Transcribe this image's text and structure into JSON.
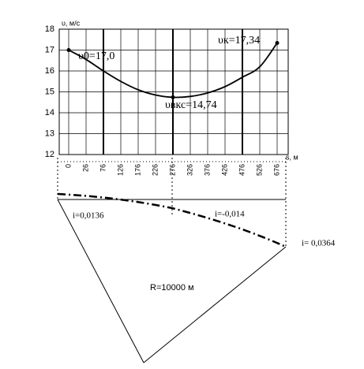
{
  "chart_data": {
    "type": "line",
    "y_label": "υ, м/с",
    "x_label": "s, м",
    "categories": [
      "0",
      "26",
      "76",
      "126",
      "176",
      "226",
      "276",
      "326",
      "376",
      "426",
      "476",
      "526",
      "676"
    ],
    "series": [
      {
        "name": "υ",
        "color": "#000000",
        "values": [
          17.0,
          16.55,
          16.0,
          15.5,
          15.1,
          14.85,
          14.74,
          14.78,
          14.95,
          15.25,
          15.7,
          16.2,
          17.34
        ]
      }
    ],
    "ylim": [
      12,
      18
    ],
    "yticks": [
      12,
      13,
      14,
      15,
      16,
      17,
      18
    ],
    "grid": true,
    "annotations": [
      "υ0=17,0",
      "υвкс=14,74",
      "υк=17,34"
    ]
  },
  "diagram": {
    "labels": [
      "i=0,0136",
      "i=-0,014",
      "i= 0,0364",
      "R=10000 м"
    ]
  }
}
